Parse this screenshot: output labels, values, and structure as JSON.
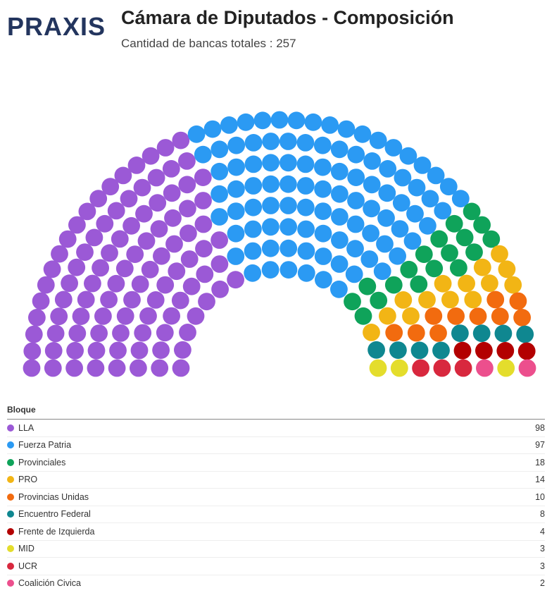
{
  "logo": {
    "text": "PRAXIS"
  },
  "title": "Cámara de Diputados - Composición",
  "subtitle": "Cantidad de bancas totales : 257",
  "chart_data": {
    "type": "parliament",
    "total_seats": 257,
    "legend_title": "Bloque",
    "series": [
      {
        "name": "LLA",
        "seats": 98,
        "color": "#9b59d6"
      },
      {
        "name": "Fuerza Patria",
        "seats": 97,
        "color": "#2b9af3"
      },
      {
        "name": "Provinciales",
        "seats": 18,
        "color": "#0fa35a"
      },
      {
        "name": "PRO",
        "seats": 14,
        "color": "#f2b515"
      },
      {
        "name": "Provincias Unidas",
        "seats": 10,
        "color": "#f26b0f"
      },
      {
        "name": "Encuentro Federal",
        "seats": 8,
        "color": "#0f8790"
      },
      {
        "name": "Frente de Izquierda",
        "seats": 4,
        "color": "#b30000"
      },
      {
        "name": "MID",
        "seats": 3,
        "color": "#e4dd2c"
      },
      {
        "name": "UCR",
        "seats": 3,
        "color": "#d8283e"
      },
      {
        "name": "Coalición Civica",
        "seats": 2,
        "color": "#ec4f8d"
      }
    ]
  }
}
